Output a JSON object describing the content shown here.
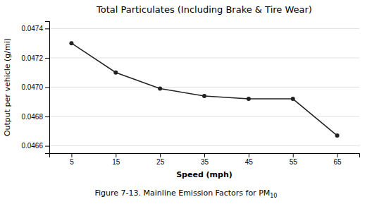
{
  "chart_data": {
    "type": "line",
    "title": "Total Particulates (Including Brake & Tire Wear)",
    "xlabel": "Speed (mph)",
    "ylabel": "Output per vehicle (g/mi)",
    "caption": "Figure 7-13. Mainline Emission Factors for PM",
    "caption_subscript": "10",
    "x": [
      5,
      15,
      25,
      35,
      45,
      55,
      65
    ],
    "values": [
      0.0473,
      0.0471,
      0.04699,
      0.04694,
      0.04692,
      0.04692,
      0.04667
    ],
    "color": "#222222",
    "marker": "circle",
    "xlim": [
      0,
      70
    ],
    "xticks": [
      5,
      15,
      25,
      35,
      45,
      55,
      65
    ],
    "ylim": [
      0.04655,
      0.04745
    ],
    "yticks": [
      0.0466,
      0.0468,
      {
        "value": 0.047,
        "label": "0.0470"
      },
      0.0472,
      0.0474
    ],
    "grid": true
  }
}
